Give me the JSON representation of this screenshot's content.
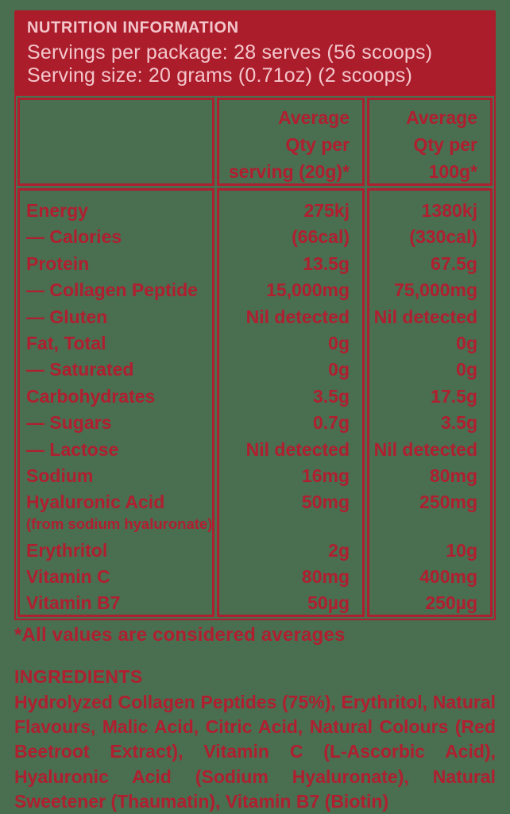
{
  "header": {
    "title": "NUTRITION INFORMATION",
    "servings_per_package": "Servings per package: 28 serves (56 scoops)",
    "serving_size": "Serving size: 20 grams (0.71oz) (2 scoops)"
  },
  "table": {
    "col_headers": [
      {
        "lines": [
          "Average",
          "Qty per",
          "serving (20g)*"
        ]
      },
      {
        "lines": [
          "Average",
          "Qty per",
          "100g*"
        ]
      }
    ],
    "rows": [
      {
        "label": "Energy",
        "serving": "275kj",
        "per100": "1380kj"
      },
      {
        "label": "— Calories",
        "serving": "(66cal)",
        "per100": "(330cal)"
      },
      {
        "label": "Protein",
        "serving": "13.5g",
        "per100": "67.5g"
      },
      {
        "label": "— Collagen Peptide",
        "serving": "15,000mg",
        "per100": "75,000mg"
      },
      {
        "label": "— Gluten",
        "serving": "Nil detected",
        "per100": "Nil detected"
      },
      {
        "label": "Fat, Total",
        "serving": "0g",
        "per100": "0g"
      },
      {
        "label": "— Saturated",
        "serving": "0g",
        "per100": "0g"
      },
      {
        "label": "Carbohydrates",
        "serving": "3.5g",
        "per100": "17.5g"
      },
      {
        "label": "— Sugars",
        "serving": "0.7g",
        "per100": "3.5g"
      },
      {
        "label": "— Lactose",
        "serving": "Nil detected",
        "per100": "Nil detected"
      },
      {
        "label": "Sodium",
        "serving": "16mg",
        "per100": "80mg"
      },
      {
        "label": "Hyaluronic Acid",
        "note": "(from sodium hyaluronate)",
        "serving": "50mg",
        "per100": "250mg"
      },
      {
        "label": "Erythritol",
        "serving": "2g",
        "per100": "10g"
      },
      {
        "label": "Vitamin C",
        "serving": "80mg",
        "per100": "400mg"
      },
      {
        "label": "Vitamin B7",
        "serving": "50µg",
        "per100": "250µg"
      }
    ]
  },
  "footnote": "*All values are considered averages",
  "ingredients": {
    "heading": "INGREDIENTS",
    "text": "Hydrolyzed Collagen Peptides (75%), Erythritol, Natural Flavours, Malic Acid, Citric Acid, Natural Colours (Red Beetroot Extract), Vitamin C (L-Ascorbic Acid), Hyaluronic Acid (Sodium Hyaluronate), Natural Sweetener (Thaumatin), Vitamin B7 (Biotin)"
  },
  "colors": {
    "background_green": "#4A6E50",
    "brand_red": "#AC1D2C",
    "text_red": "#B01F30",
    "header_text_pink": "#F2C6CB"
  }
}
